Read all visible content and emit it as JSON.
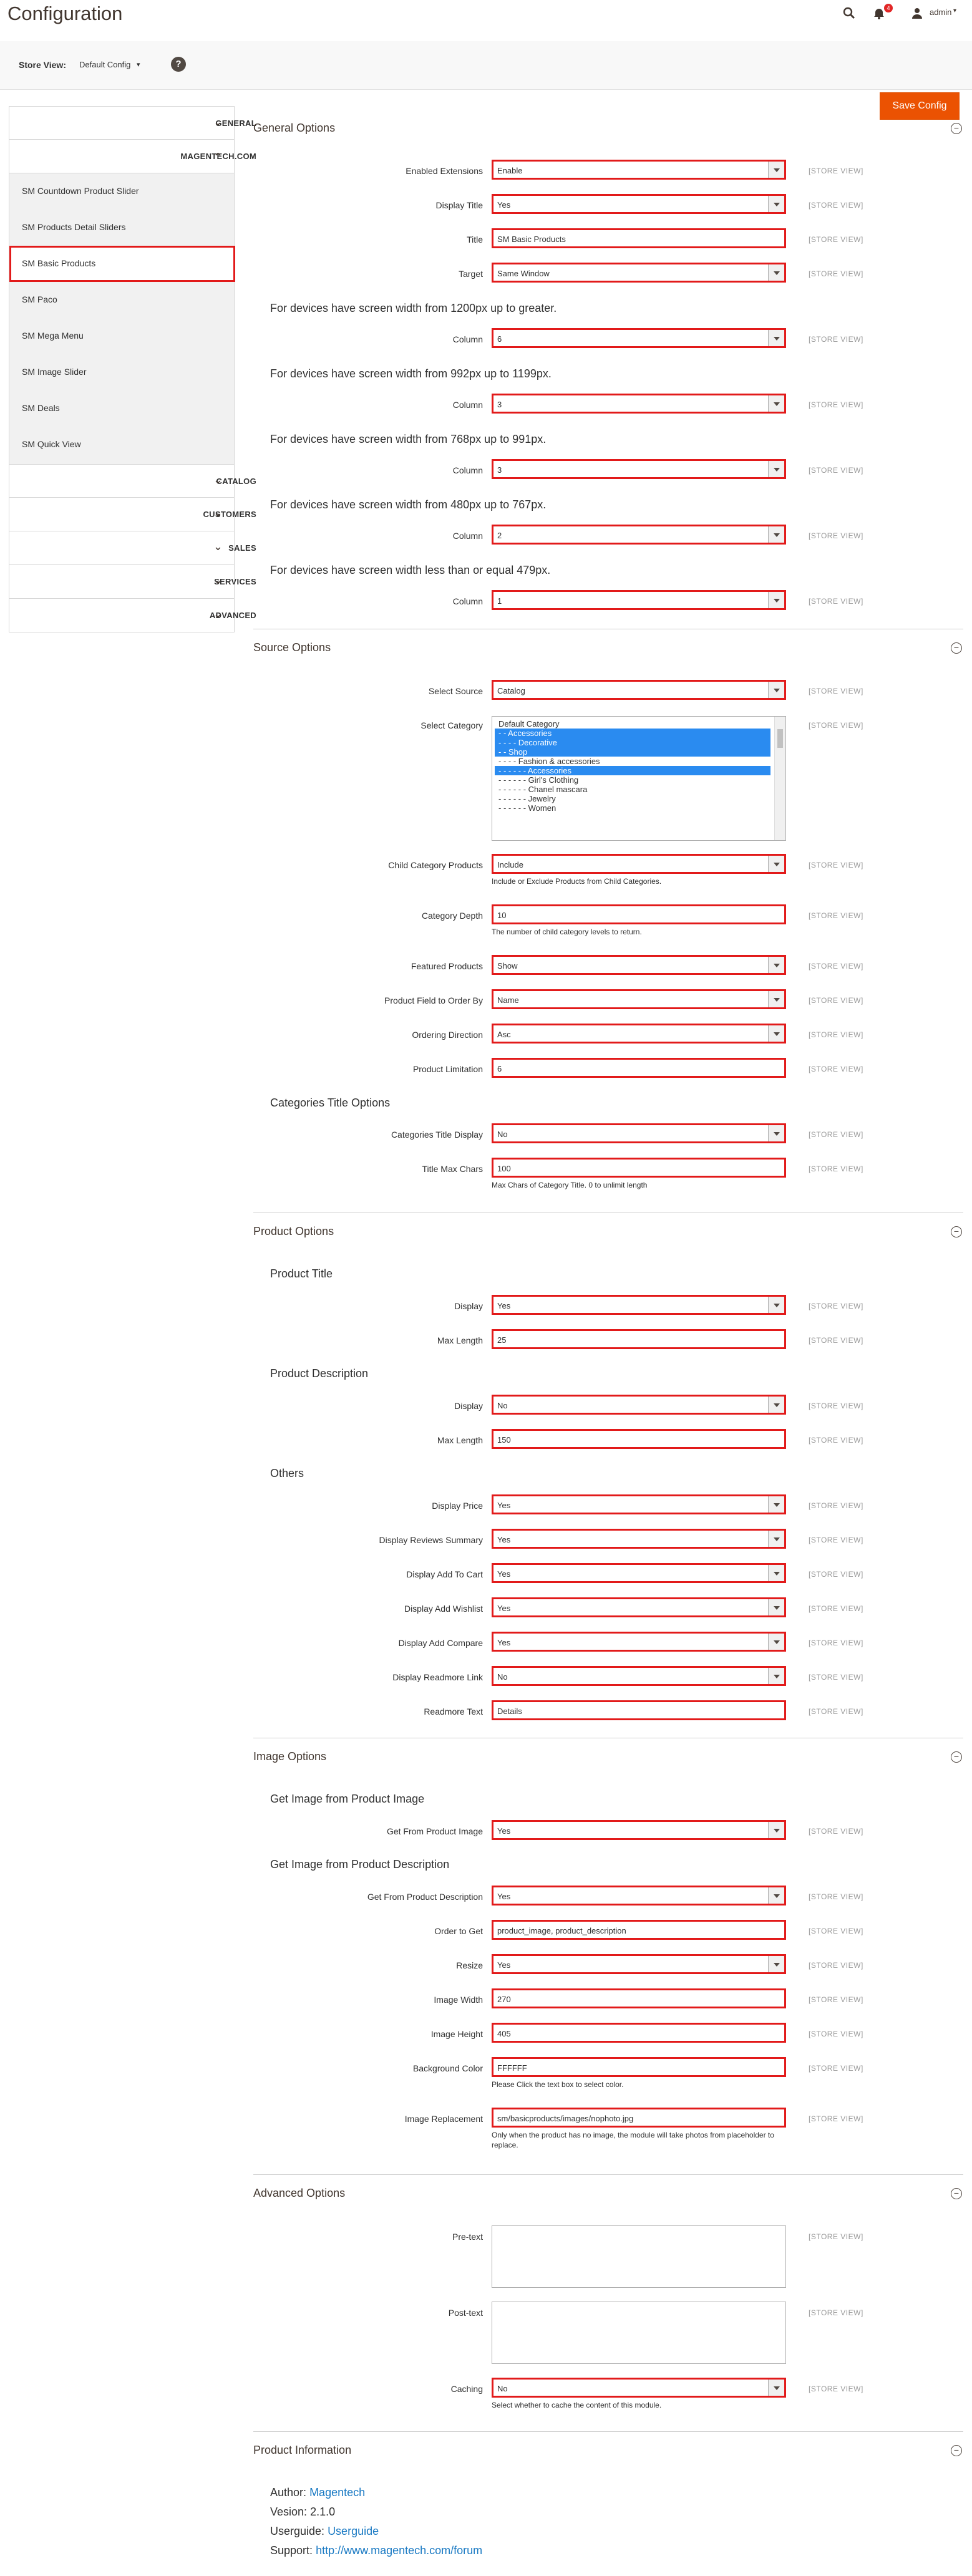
{
  "header": {
    "title": "Configuration",
    "notification_count": "4",
    "admin_label": "admin",
    "icons": [
      "search-icon",
      "bell-icon",
      "user-icon"
    ]
  },
  "toolbar": {
    "store_view_label": "Store View:",
    "store_view_value": "Default Config",
    "help_label": "?",
    "save_label": "Save Config"
  },
  "sidebar": {
    "general": "GENERAL",
    "magentech": "MAGENTECH.COM",
    "items": [
      "SM Countdown Product Slider",
      "SM Products Detail Sliders",
      "SM Basic Products",
      "SM Paco",
      "SM Mega Menu",
      "SM Image Slider",
      "SM Deals",
      "SM Quick View"
    ],
    "catalog": "CATALOG",
    "customers": "CUSTOMERS",
    "sales": "SALES",
    "services": "SERVICES",
    "advanced": "ADVANCED"
  },
  "scope_label": "[STORE VIEW]",
  "general": {
    "title": "General Options",
    "enabled_label": "Enabled Extensions",
    "enabled_value": "Enable",
    "display_title_label": "Display Title",
    "display_title_value": "Yes",
    "title_label": "Title",
    "title_value": "SM Basic Products",
    "target_label": "Target",
    "target_value": "Same Window",
    "dev1": "For devices have screen width from 1200px up to greater.",
    "dev2": "For devices have screen width from 992px up to 1199px.",
    "dev3": "For devices have screen width from 768px up to 991px.",
    "dev4": "For devices have screen width from 480px up to 767px.",
    "dev5": "For devices have screen width less than or equal 479px.",
    "column_label": "Column",
    "col1": "6",
    "col2": "3",
    "col3": "3",
    "col4": "2",
    "col5": "1"
  },
  "source": {
    "title": "Source Options",
    "select_source_label": "Select Source",
    "select_source_value": "Catalog",
    "select_category_label": "Select Category",
    "categories": [
      "Default Category",
      "- - Accessories",
      "- - - - Decorative",
      "- - Shop",
      "- - - - Fashion & accessories",
      "- - - - - - Accessories",
      "- - - - - - Girl's Clothing",
      "- - - - - - Chanel mascara",
      "- - - - - - Jewelry",
      "- - - - - - Women"
    ],
    "child_label": "Child Category Products",
    "child_value": "Include",
    "child_note": "Include or Exclude Products from Child Categories.",
    "depth_label": "Category Depth",
    "depth_value": "10",
    "depth_note": "The number of child category levels to return.",
    "featured_label": "Featured Products",
    "featured_value": "Show",
    "order_by_label": "Product Field to Order By",
    "order_by_value": "Name",
    "direction_label": "Ordering Direction",
    "direction_value": "Asc",
    "limit_label": "Product Limitation",
    "limit_value": "6",
    "cat_title_heading": "Categories Title Options",
    "cat_title_display_label": "Categories Title Display",
    "cat_title_display_value": "No",
    "max_chars_label": "Title Max Chars",
    "max_chars_value": "100",
    "max_chars_note": "Max Chars of Category Title. 0 to unlimit length"
  },
  "product": {
    "title": "Product Options",
    "pt_heading": "Product Title",
    "pt_display_label": "Display",
    "pt_display_value": "Yes",
    "pt_max_label": "Max Length",
    "pt_max_value": "25",
    "pd_heading": "Product Description",
    "pd_display_label": "Display",
    "pd_display_value": "No",
    "pd_max_label": "Max Length",
    "pd_max_value": "150",
    "others_heading": "Others",
    "price_label": "Display Price",
    "price_value": "Yes",
    "reviews_label": "Display Reviews Summary",
    "reviews_value": "Yes",
    "cart_label": "Display Add To Cart",
    "cart_value": "Yes",
    "wishlist_label": "Display Add Wishlist",
    "wishlist_value": "Yes",
    "compare_label": "Display Add Compare",
    "compare_value": "Yes",
    "readmore_label": "Display Readmore Link",
    "readmore_value": "No",
    "readmore_text_label": "Readmore Text",
    "readmore_text_value": "Details"
  },
  "image": {
    "title": "Image Options",
    "from_img_heading": "Get Image from Product Image",
    "from_img_label": "Get From Product Image",
    "from_img_value": "Yes",
    "from_desc_heading": "Get Image from Product Description",
    "from_desc_label": "Get From Product Description",
    "from_desc_value": "Yes",
    "order_label": "Order to Get",
    "order_value": "product_image, product_description",
    "resize_label": "Resize",
    "resize_value": "Yes",
    "width_label": "Image Width",
    "width_value": "270",
    "height_label": "Image Height",
    "height_value": "405",
    "bg_label": "Background Color",
    "bg_value": "FFFFFF",
    "bg_note": "Please Click the text box to select color.",
    "repl_label": "Image Replacement",
    "repl_value": "sm/basicproducts/images/nophoto.jpg",
    "repl_note": "Only when the product has no image, the module will take photos from placeholder to replace."
  },
  "advanced": {
    "title": "Advanced Options",
    "pre_label": "Pre-text",
    "post_label": "Post-text",
    "caching_label": "Caching",
    "caching_value": "No",
    "caching_note": "Select whether to cache the content of this module."
  },
  "info": {
    "title": "Product Information",
    "author_label": "Author:",
    "author_value": "Magentech",
    "version_label": "Vesion:",
    "version_value": "2.1.0",
    "guide_label": "Userguide:",
    "guide_value": "Userguide",
    "support_label": "Support:",
    "support_value": "http://www.magentech.com/forum"
  },
  "colors": {
    "accent": "#eb5202",
    "highlight": "#e21a1a",
    "link": "#1979c3",
    "selected": "#2a8bf0"
  }
}
